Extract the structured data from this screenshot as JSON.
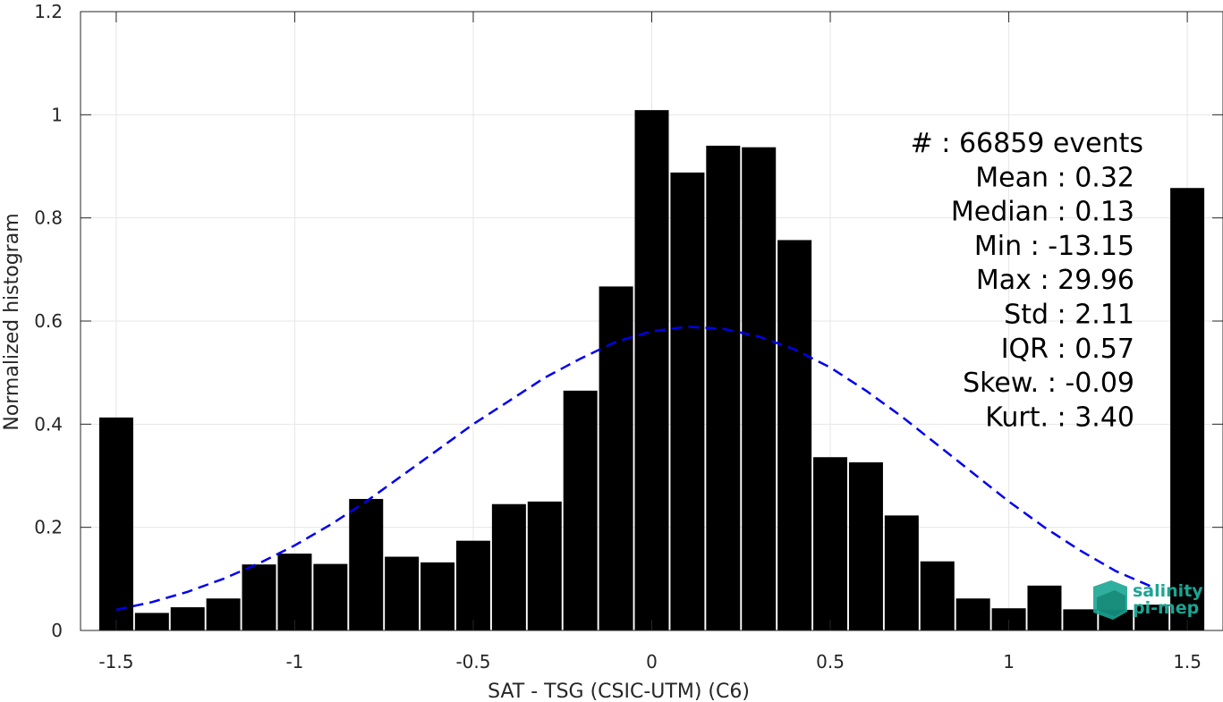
{
  "chart_data": {
    "type": "bar",
    "xlabel": "SAT - TSG (CSIC-UTM) (C6)",
    "ylabel": "Normalized histogram",
    "xlim": [
      -1.6,
      1.6
    ],
    "ylim": [
      0,
      1.2
    ],
    "xticks": [
      -1.5,
      -1,
      -0.5,
      0,
      0.5,
      1,
      1.5
    ],
    "xtick_labels": [
      "-1.5",
      "-1",
      "-0.5",
      "0",
      "0.5",
      "1",
      "1.5"
    ],
    "yticks": [
      0,
      0.2,
      0.4,
      0.6,
      0.8,
      1,
      1.2
    ],
    "ytick_labels": [
      "0",
      "0.2",
      "0.4",
      "0.6",
      "0.8",
      "1",
      "1.2"
    ],
    "grid": true,
    "bar_color": "#000000",
    "bin_width": 0.1,
    "x": [
      -1.5,
      -1.4,
      -1.3,
      -1.2,
      -1.1,
      -1.0,
      -0.9,
      -0.8,
      -0.7,
      -0.6,
      -0.5,
      -0.4,
      -0.3,
      -0.2,
      -0.1,
      0.0,
      0.1,
      0.2,
      0.3,
      0.4,
      0.5,
      0.6,
      0.7,
      0.8,
      0.9,
      1.0,
      1.1,
      1.2,
      1.3,
      1.4,
      1.5
    ],
    "values": [
      0.413,
      0.034,
      0.045,
      0.062,
      0.128,
      0.149,
      0.129,
      0.255,
      0.143,
      0.132,
      0.174,
      0.245,
      0.25,
      0.465,
      0.667,
      1.009,
      0.888,
      0.94,
      0.937,
      0.757,
      0.336,
      0.326,
      0.223,
      0.134,
      0.062,
      0.043,
      0.087,
      0.041,
      0.04,
      0.05,
      0.858
    ],
    "fit_curve": {
      "style": "dashed",
      "color": "#0000ee",
      "x": [
        -1.5,
        -1.4,
        -1.3,
        -1.2,
        -1.1,
        -1.0,
        -0.9,
        -0.8,
        -0.7,
        -0.6,
        -0.5,
        -0.4,
        -0.3,
        -0.2,
        -0.1,
        0.0,
        0.1,
        0.2,
        0.3,
        0.4,
        0.5,
        0.6,
        0.7,
        0.8,
        0.9,
        1.0,
        1.1,
        1.2,
        1.3,
        1.4
      ],
      "y": [
        0.04,
        0.055,
        0.075,
        0.1,
        0.13,
        0.165,
        0.205,
        0.25,
        0.3,
        0.35,
        0.4,
        0.445,
        0.49,
        0.527,
        0.56,
        0.58,
        0.589,
        0.585,
        0.57,
        0.545,
        0.51,
        0.465,
        0.415,
        0.36,
        0.305,
        0.25,
        0.2,
        0.155,
        0.115,
        0.085
      ]
    },
    "stats_lines": [
      "#  : 66859 events",
      "Mean : 0.32",
      "Median : 0.13",
      "Min : -13.15",
      "Max : 29.96",
      "Std : 2.11",
      "IQR : 0.57",
      "Skew. : -0.09",
      "Kurt. : 3.40"
    ]
  },
  "logo": {
    "line1": "salinity",
    "line2": "pi-mep",
    "color": "#1aa594"
  }
}
